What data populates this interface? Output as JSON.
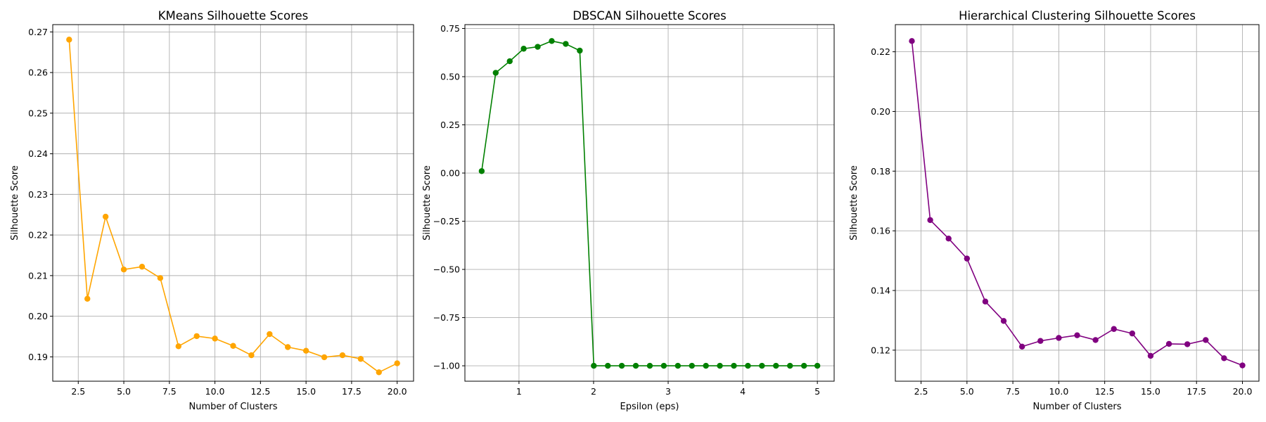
{
  "chart_data": [
    {
      "type": "line",
      "title": "KMeans Silhouette Scores",
      "xlabel": "Number of Clusters",
      "ylabel": "Silhouette Score",
      "xlim": [
        1.1,
        20.9
      ],
      "ylim": [
        0.184,
        0.2718
      ],
      "xticks": [
        2.5,
        5.0,
        7.5,
        10.0,
        12.5,
        15.0,
        17.5,
        20.0
      ],
      "xtick_labels": [
        "2.5",
        "5.0",
        "7.5",
        "10.0",
        "12.5",
        "15.0",
        "17.5",
        "20.0"
      ],
      "yticks": [
        0.19,
        0.2,
        0.21,
        0.22,
        0.23,
        0.24,
        0.25,
        0.26,
        0.27
      ],
      "ytick_labels": [
        "0.19",
        "0.20",
        "0.21",
        "0.22",
        "0.23",
        "0.24",
        "0.25",
        "0.26",
        "0.27"
      ],
      "grid": true,
      "color": "#ffa500",
      "series": [
        {
          "x": [
            2,
            3,
            4,
            5,
            6,
            7,
            8,
            9,
            10,
            11,
            12,
            13,
            14,
            15,
            16,
            17,
            18,
            19,
            20
          ],
          "values": [
            0.2681,
            0.2043,
            0.2245,
            0.2115,
            0.2122,
            0.2094,
            0.1926,
            0.1951,
            0.1945,
            0.1927,
            0.1904,
            0.1956,
            0.1924,
            0.1915,
            0.1899,
            0.1904,
            0.1895,
            0.1862,
            0.1884
          ]
        }
      ]
    },
    {
      "type": "line",
      "title": "DBSCAN Silhouette Scores",
      "xlabel": "Epsilon (eps)",
      "ylabel": "Silhouette Score",
      "xlim": [
        0.275,
        5.225
      ],
      "ylim": [
        -1.08,
        0.77
      ],
      "xticks": [
        1,
        2,
        3,
        4,
        5
      ],
      "xtick_labels": [
        "1",
        "2",
        "3",
        "4",
        "5"
      ],
      "yticks": [
        -1.0,
        -0.75,
        -0.5,
        -0.25,
        0.0,
        0.25,
        0.5,
        0.75
      ],
      "ytick_labels": [
        "−1.00",
        "−0.75",
        "−0.50",
        "−0.25",
        "0.00",
        "0.25",
        "0.50",
        "0.75"
      ],
      "grid": true,
      "color": "#008000",
      "series": [
        {
          "x": [
            0.5,
            0.688,
            0.876,
            1.063,
            1.251,
            1.439,
            1.627,
            1.815,
            2.003,
            2.191,
            2.378,
            2.566,
            2.754,
            2.942,
            3.13,
            3.318,
            3.506,
            3.693,
            3.881,
            4.069,
            4.257,
            4.445,
            4.633,
            4.821,
            5.0
          ],
          "values": [
            0.01,
            0.52,
            0.58,
            0.645,
            0.655,
            0.685,
            0.67,
            0.635,
            -1.0,
            -1.0,
            -1.0,
            -1.0,
            -1.0,
            -1.0,
            -1.0,
            -1.0,
            -1.0,
            -1.0,
            -1.0,
            -1.0,
            -1.0,
            -1.0,
            -1.0,
            -1.0,
            -1.0
          ]
        }
      ]
    },
    {
      "type": "line",
      "title": "Hierarchical Clustering Silhouette Scores",
      "xlabel": "Number of Clusters",
      "ylabel": "Silhouette Score",
      "xlim": [
        1.1,
        20.9
      ],
      "ylim": [
        0.1096,
        0.2291
      ],
      "xticks": [
        2.5,
        5.0,
        7.5,
        10.0,
        12.5,
        15.0,
        17.5,
        20.0
      ],
      "xtick_labels": [
        "2.5",
        "5.0",
        "7.5",
        "10.0",
        "12.5",
        "15.0",
        "17.5",
        "20.0"
      ],
      "yticks": [
        0.12,
        0.14,
        0.16,
        0.18,
        0.2,
        0.22
      ],
      "ytick_labels": [
        "0.12",
        "0.14",
        "0.16",
        "0.18",
        "0.20",
        "0.22"
      ],
      "grid": true,
      "color": "#800080",
      "series": [
        {
          "x": [
            2,
            3,
            4,
            5,
            6,
            7,
            8,
            9,
            10,
            11,
            12,
            13,
            14,
            15,
            16,
            17,
            18,
            19,
            20
          ],
          "values": [
            0.2236,
            0.1636,
            0.1574,
            0.1507,
            0.1363,
            0.1298,
            0.1212,
            0.1231,
            0.1241,
            0.125,
            0.1234,
            0.1271,
            0.1256,
            0.1181,
            0.1221,
            0.122,
            0.1234,
            0.1173,
            0.1149
          ]
        }
      ]
    }
  ]
}
